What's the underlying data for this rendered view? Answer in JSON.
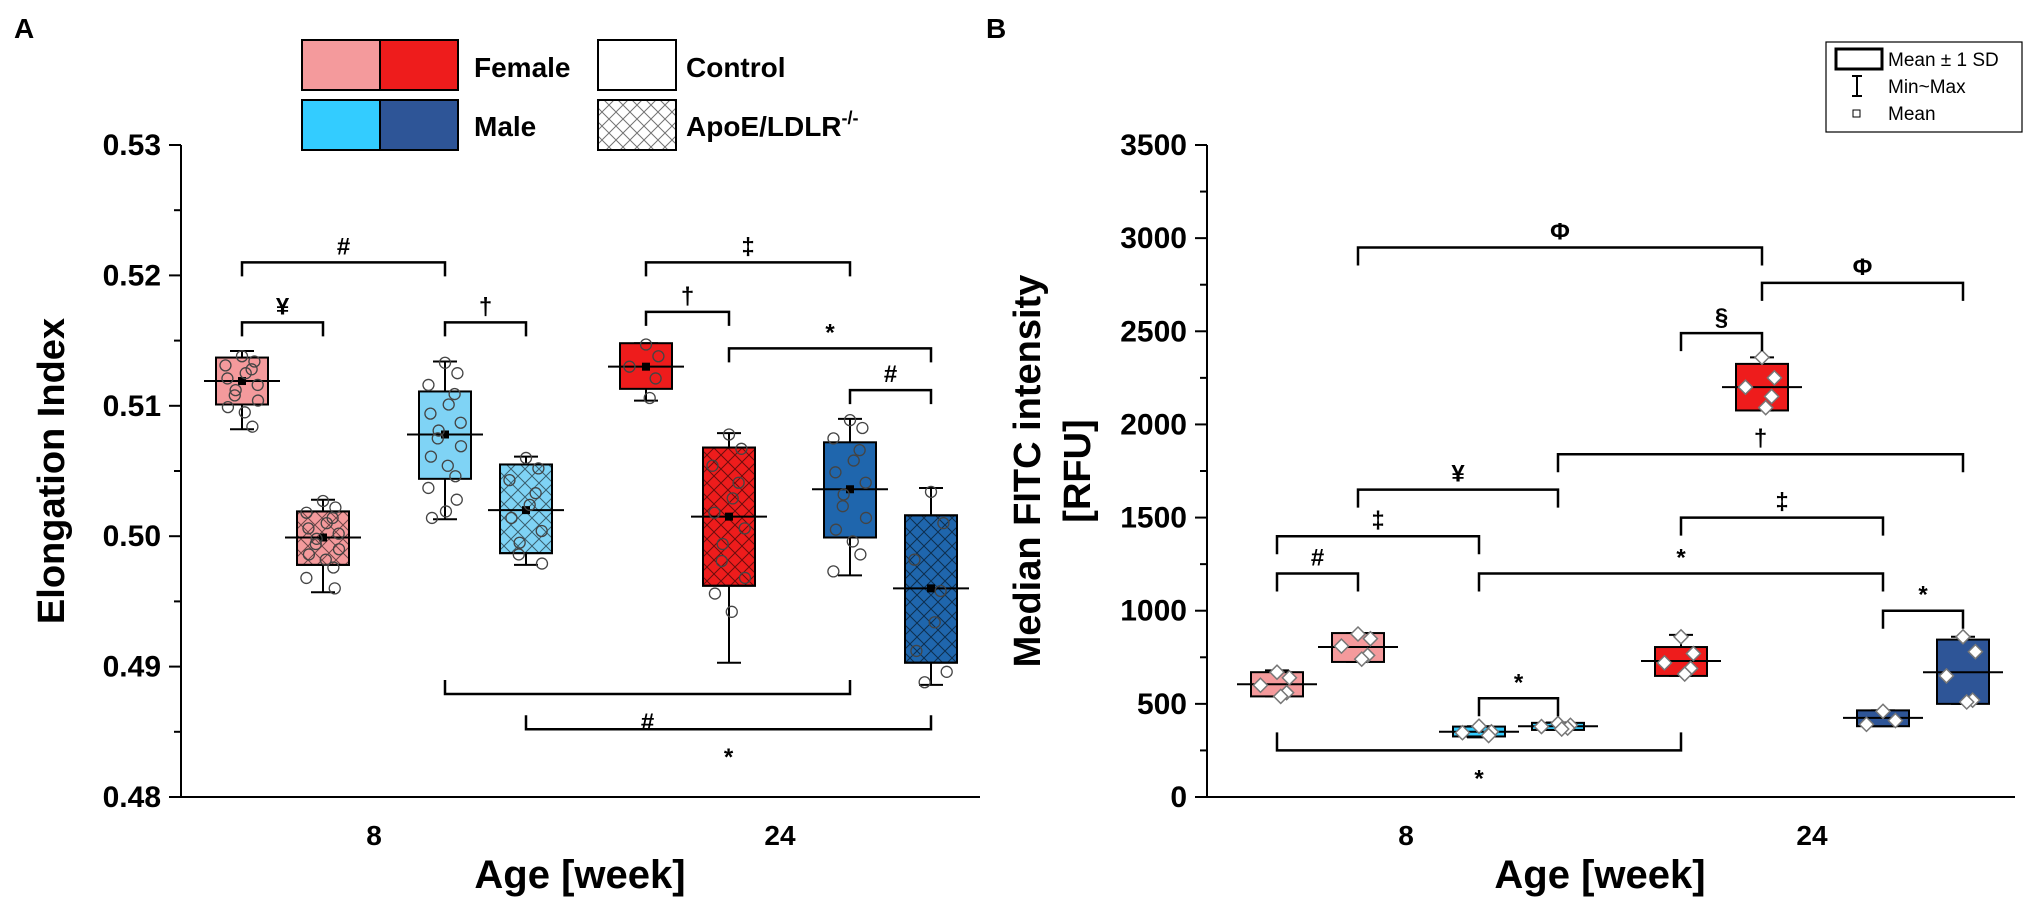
{
  "figure": {
    "panel_a_letter": "A",
    "panel_b_letter": "B"
  },
  "colors": {
    "female_control": "#f49a9c",
    "female_apoe": "#ee1c1c",
    "male_control": "#33ccff",
    "male_apoe": "#2e5597",
    "male_control_box": "#7fd3f5",
    "male_apoe_box": "#1f66ad",
    "axis": "#000000"
  },
  "legend_a": {
    "female_label": "Female",
    "male_label": "Male",
    "control_label": "Control",
    "apoe_label": "ApoE/LDLR",
    "apoe_superscript": "-/-"
  },
  "legend_b": {
    "box_label": "Mean ± 1 SD",
    "whisker_label": "Min~Max",
    "mean_label": "Mean"
  },
  "chart_data": [
    {
      "type": "box",
      "panel": "A",
      "xlabel": "Age [week]",
      "ylabel": "Elongation Index",
      "ylim": [
        0.48,
        0.53
      ],
      "yticks": [
        "0.48",
        "0.49",
        "0.50",
        "0.51",
        "0.52",
        "0.53"
      ],
      "categories": [
        "8",
        "24"
      ],
      "groups": [
        {
          "name": "Female Control 8w",
          "age": "8",
          "color": "female_control",
          "pattern": "none",
          "mean": 0.5119,
          "q1": 0.5101,
          "q3": 0.5137,
          "min": 0.5082,
          "max": 0.5142,
          "points": [
            0.5138,
            0.5134,
            0.5131,
            0.5128,
            0.5125,
            0.5121,
            0.5116,
            0.5112,
            0.5108,
            0.5104,
            0.5099,
            0.5095,
            0.5084
          ]
        },
        {
          "name": "Female ApoE/LDLR 8w",
          "age": "8",
          "color": "female_control",
          "pattern": "cross",
          "mean": 0.4999,
          "q1": 0.4978,
          "q3": 0.5019,
          "min": 0.4957,
          "max": 0.5028,
          "points": [
            0.5027,
            0.5022,
            0.5018,
            0.5014,
            0.501,
            0.5006,
            0.5002,
            0.4998,
            0.4994,
            0.499,
            0.4986,
            0.4982,
            0.4976,
            0.4968,
            0.496
          ]
        },
        {
          "name": "Male Control 8w",
          "age": "8",
          "color": "male_control_box",
          "pattern": "none",
          "mean": 0.5078,
          "q1": 0.5044,
          "q3": 0.5111,
          "min": 0.5013,
          "max": 0.5134,
          "points": [
            0.5133,
            0.5125,
            0.5116,
            0.5109,
            0.5101,
            0.5094,
            0.5087,
            0.5081,
            0.5075,
            0.5069,
            0.5061,
            0.5054,
            0.5046,
            0.5037,
            0.5028,
            0.5019,
            0.5014
          ]
        },
        {
          "name": "Male ApoE/LDLR 8w",
          "age": "8",
          "color": "male_control_box",
          "pattern": "cross",
          "mean": 0.502,
          "q1": 0.4987,
          "q3": 0.5055,
          "min": 0.4978,
          "max": 0.5061,
          "points": [
            0.506,
            0.5052,
            0.5043,
            0.5033,
            0.5024,
            0.5014,
            0.5004,
            0.4995,
            0.4986,
            0.4979
          ]
        },
        {
          "name": "Female Control 24w",
          "age": "24",
          "color": "female_apoe",
          "pattern": "none",
          "mean": 0.513,
          "q1": 0.5113,
          "q3": 0.5148,
          "min": 0.5104,
          "max": 0.5148,
          "points": [
            0.5147,
            0.5138,
            0.513,
            0.5121,
            0.5106
          ]
        },
        {
          "name": "Female ApoE/LDLR 24w",
          "age": "24",
          "color": "female_apoe",
          "pattern": "cross",
          "mean": 0.5015,
          "q1": 0.4962,
          "q3": 0.5068,
          "min": 0.4903,
          "max": 0.5079,
          "points": [
            0.5078,
            0.5067,
            0.5054,
            0.5041,
            0.5029,
            0.5018,
            0.5006,
            0.4994,
            0.4981,
            0.4968,
            0.4956,
            0.4942
          ]
        },
        {
          "name": "Male Control 24w",
          "age": "24",
          "color": "male_apoe_box",
          "pattern": "none",
          "mean": 0.5036,
          "q1": 0.4999,
          "q3": 0.5072,
          "min": 0.497,
          "max": 0.509,
          "points": [
            0.5089,
            0.5083,
            0.5075,
            0.5066,
            0.5058,
            0.5049,
            0.5041,
            0.5032,
            0.5023,
            0.5014,
            0.5005,
            0.4996,
            0.4986,
            0.4973
          ]
        },
        {
          "name": "Male ApoE/LDLR 24w",
          "age": "24",
          "color": "male_apoe_box",
          "pattern": "cross",
          "mean": 0.496,
          "q1": 0.4903,
          "q3": 0.5016,
          "min": 0.4886,
          "max": 0.5037,
          "points": [
            0.5034,
            0.501,
            0.4982,
            0.4958,
            0.4934,
            0.4912,
            0.4896,
            0.4888
          ]
        }
      ],
      "brackets": [
        {
          "label": "#",
          "from": 0,
          "to": 2,
          "level": 0.521,
          "side": "top"
        },
        {
          "label": "¥",
          "from": 0,
          "to": 1,
          "level": 0.5164,
          "side": "top"
        },
        {
          "label": "†",
          "from": 2,
          "to": 3,
          "level": 0.5164,
          "side": "top"
        },
        {
          "label": "‡",
          "from": 4,
          "to": 6,
          "level": 0.521,
          "side": "top"
        },
        {
          "label": "†",
          "from": 4,
          "to": 5,
          "level": 0.5172,
          "side": "top"
        },
        {
          "label": "*",
          "from": 5,
          "to": 7,
          "level": 0.5144,
          "side": "top"
        },
        {
          "label": "#",
          "from": 6,
          "to": 7,
          "level": 0.5112,
          "side": "top"
        },
        {
          "label": "#",
          "from": 2,
          "to": 6,
          "level": 0.4879,
          "side": "bottom"
        },
        {
          "label": "*",
          "from": 3,
          "to": 7,
          "level": 0.4852,
          "side": "bottom"
        }
      ]
    },
    {
      "type": "box",
      "panel": "B",
      "xlabel": "Age [week]",
      "ylabel_line1": "Median FITC intensity",
      "ylabel_line2": "[RFU]",
      "ylim": [
        0,
        3500
      ],
      "yticks": [
        "0",
        "500",
        "1000",
        "1500",
        "2000",
        "2500",
        "3000",
        "3500"
      ],
      "categories": [
        "8",
        "24"
      ],
      "groups": [
        {
          "name": "Female Control 8w",
          "age": "8",
          "color": "female_control",
          "mean": 605,
          "q1": 540,
          "q3": 670,
          "min": 540,
          "max": 680,
          "points": [
            670,
            640,
            600,
            560,
            540
          ]
        },
        {
          "name": "Female ApoE/LDLR 8w",
          "age": "8",
          "color": "female_control",
          "mean": 805,
          "q1": 725,
          "q3": 880,
          "min": 725,
          "max": 880,
          "points": [
            875,
            850,
            810,
            760,
            740
          ]
        },
        {
          "name": "Male Control 8w",
          "age": "8",
          "color": "male_control",
          "mean": 350,
          "q1": 325,
          "q3": 378,
          "min": 320,
          "max": 380,
          "points": [
            380,
            350,
            345,
            330
          ]
        },
        {
          "name": "Male ApoE/LDLR 8w",
          "age": "8",
          "color": "male_control",
          "mean": 380,
          "q1": 360,
          "q3": 398,
          "min": 360,
          "max": 400,
          "points": [
            395,
            385,
            378,
            370,
            365
          ]
        },
        {
          "name": "Female Control 24w",
          "age": "24",
          "color": "female_apoe",
          "mean": 730,
          "q1": 650,
          "q3": 805,
          "min": 650,
          "max": 870,
          "points": [
            860,
            770,
            720,
            690,
            660
          ]
        },
        {
          "name": "Female ApoE/LDLR 24w",
          "age": "24",
          "color": "female_apoe",
          "mean": 2200,
          "q1": 2075,
          "q3": 2325,
          "min": 2075,
          "max": 2360,
          "points": [
            2360,
            2250,
            2200,
            2150,
            2090
          ]
        },
        {
          "name": "Male Control 24w",
          "age": "24",
          "color": "male_apoe",
          "mean": 425,
          "q1": 380,
          "q3": 465,
          "min": 380,
          "max": 465,
          "points": [
            460,
            410,
            390
          ]
        },
        {
          "name": "Male ApoE/LDLR 24w",
          "age": "24",
          "color": "male_apoe",
          "mean": 670,
          "q1": 500,
          "q3": 845,
          "min": 500,
          "max": 860,
          "points": [
            860,
            780,
            650,
            520,
            510
          ]
        }
      ],
      "brackets": [
        {
          "label": "Φ",
          "from": 1,
          "to": 5,
          "level": 2950,
          "side": "top"
        },
        {
          "label": "Φ",
          "from": 5,
          "to": 7,
          "level": 2760,
          "side": "top"
        },
        {
          "label": "§",
          "from": 4,
          "to": 5,
          "level": 2490,
          "side": "top"
        },
        {
          "label": "†",
          "from": 3,
          "to": 7,
          "level": 1840,
          "side": "top"
        },
        {
          "label": "¥",
          "from": 1,
          "to": 3,
          "level": 1650,
          "side": "top"
        },
        {
          "label": "‡",
          "from": 0,
          "to": 2,
          "level": 1400,
          "side": "top"
        },
        {
          "label": "‡",
          "from": 4,
          "to": 6,
          "level": 1500,
          "side": "top"
        },
        {
          "label": "#",
          "from": 0,
          "to": 1,
          "level": 1200,
          "side": "top"
        },
        {
          "label": "*",
          "from": 2,
          "to": 6,
          "level": 1200,
          "side": "top"
        },
        {
          "label": "*",
          "from": 6,
          "to": 7,
          "level": 1000,
          "side": "top"
        },
        {
          "label": "*",
          "from": 2,
          "to": 3,
          "level": 530,
          "side": "top"
        },
        {
          "label": "*",
          "from": 0,
          "to": 4,
          "level": 250,
          "side": "bottom"
        }
      ]
    }
  ]
}
